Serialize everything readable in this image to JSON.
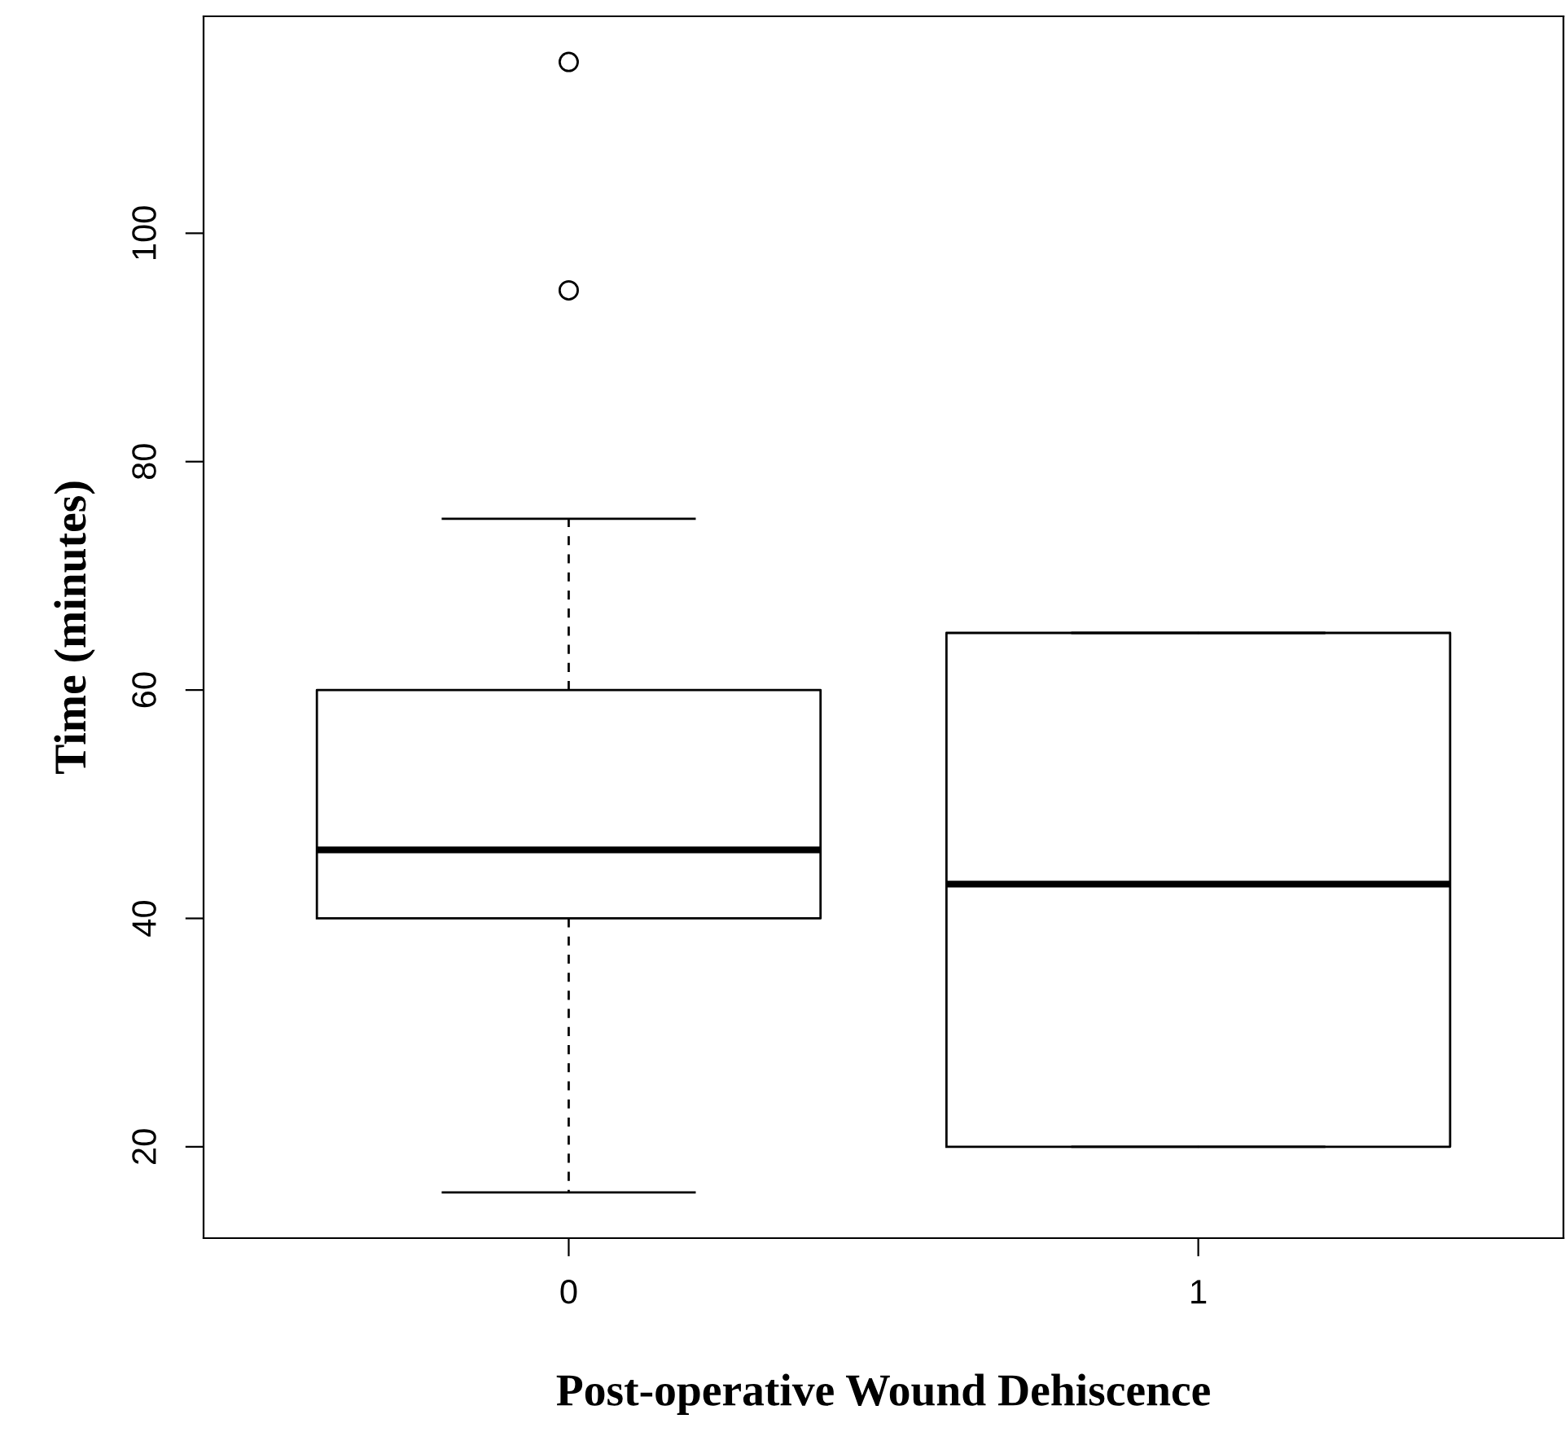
{
  "chart_data": {
    "type": "box",
    "xlabel": "Post-operative Wound Dehiscence",
    "ylabel": "Time (minutes)",
    "categories": [
      "0",
      "1"
    ],
    "boxes": [
      {
        "low": 16,
        "q1": 40,
        "median": 46,
        "q3": 60,
        "high": 75,
        "outliers": [
          95,
          115
        ]
      },
      {
        "low": 20,
        "q1": 20,
        "median": 43,
        "q3": 65,
        "high": 65
      }
    ],
    "ylim": [
      12,
      119
    ],
    "yticks": [
      20,
      40,
      60,
      80,
      100
    ],
    "grid": false
  }
}
